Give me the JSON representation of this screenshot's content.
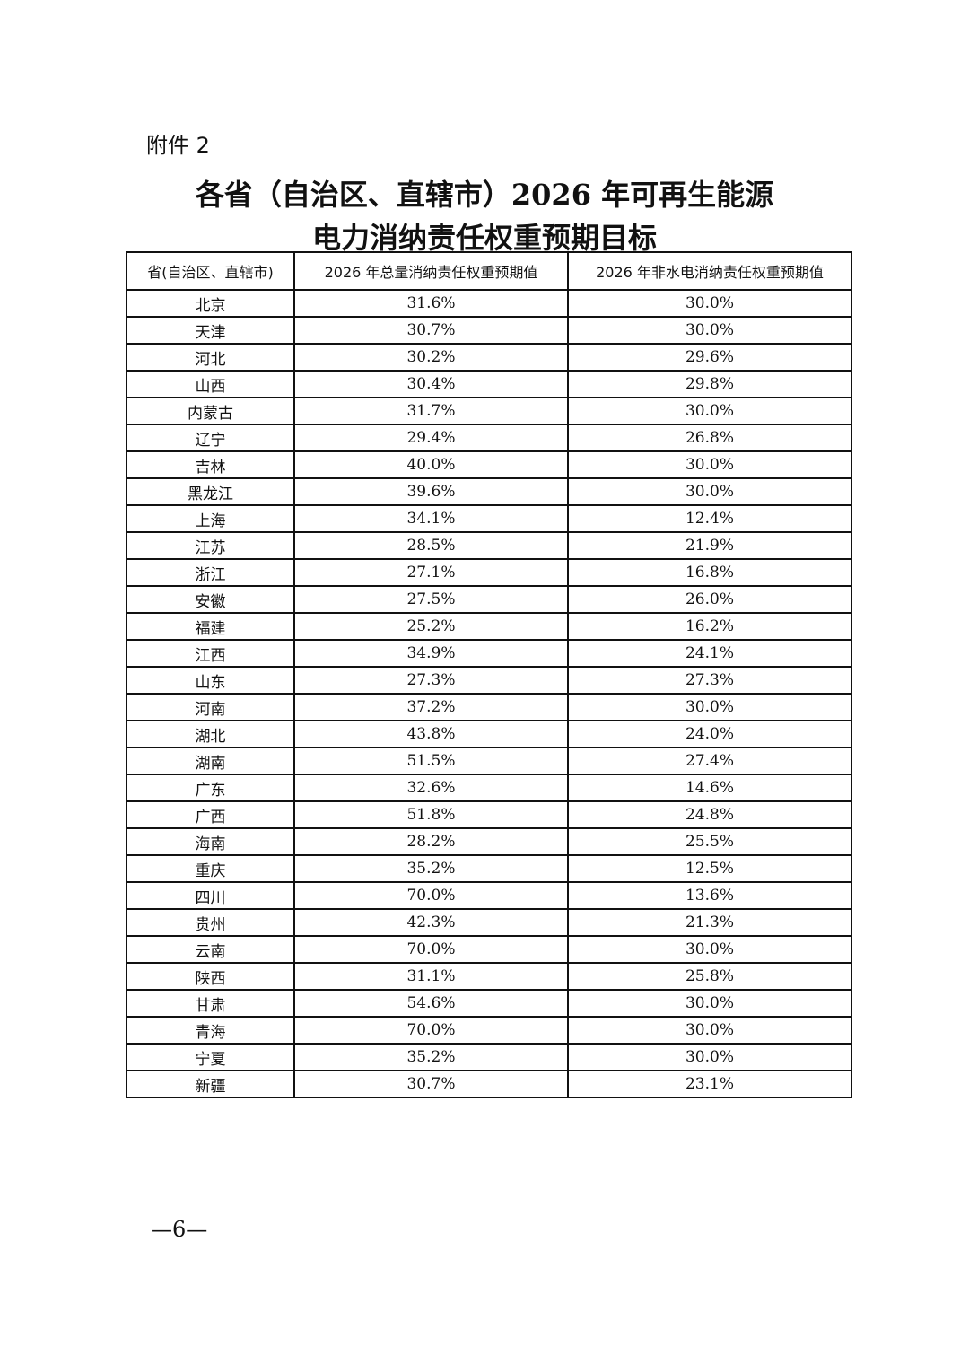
{
  "attachment_label": "附件 2",
  "title": [
    "各省（自治区、直辖市）2026 年可再生能源",
    "电力消纳责任权重预期目标"
  ],
  "table": {
    "header": [
      "省(自治区、直辖市)",
      "2026 年总量消纳责任权重预期值",
      "2026 年非水电消纳责任权重预期值"
    ],
    "rows": [
      [
        "北京",
        "31.6%",
        "30.0%"
      ],
      [
        "天津",
        "30.7%",
        "30.0%"
      ],
      [
        "河北",
        "30.2%",
        "29.6%"
      ],
      [
        "山西",
        "30.4%",
        "29.8%"
      ],
      [
        "内蒙古",
        "31.7%",
        "30.0%"
      ],
      [
        "辽宁",
        "29.4%",
        "26.8%"
      ],
      [
        "吉林",
        "40.0%",
        "30.0%"
      ],
      [
        "黑龙江",
        "39.6%",
        "30.0%"
      ],
      [
        "上海",
        "34.1%",
        "12.4%"
      ],
      [
        "江苏",
        "28.5%",
        "21.9%"
      ],
      [
        "浙江",
        "27.1%",
        "16.8%"
      ],
      [
        "安徽",
        "27.5%",
        "26.0%"
      ],
      [
        "福建",
        "25.2%",
        "16.2%"
      ],
      [
        "江西",
        "34.9%",
        "24.1%"
      ],
      [
        "山东",
        "27.3%",
        "27.3%"
      ],
      [
        "河南",
        "37.2%",
        "30.0%"
      ],
      [
        "湖北",
        "43.8%",
        "24.0%"
      ],
      [
        "湖南",
        "51.5%",
        "27.4%"
      ],
      [
        "广东",
        "32.6%",
        "14.6%"
      ],
      [
        "广西",
        "51.8%",
        "24.8%"
      ],
      [
        "海南",
        "28.2%",
        "25.5%"
      ],
      [
        "重庆",
        "35.2%",
        "12.5%"
      ],
      [
        "四川",
        "70.0%",
        "13.6%"
      ],
      [
        "贵州",
        "42.3%",
        "21.3%"
      ],
      [
        "云南",
        "70.0%",
        "30.0%"
      ],
      [
        "陕西",
        "31.1%",
        "25.8%"
      ],
      [
        "甘肃",
        "54.6%",
        "30.0%"
      ],
      [
        "青海",
        "70.0%",
        "30.0%"
      ],
      [
        "宁夏",
        "35.2%",
        "30.0%"
      ],
      [
        "新疆",
        "30.7%",
        "23.1%"
      ]
    ]
  },
  "page_number": "—6—"
}
